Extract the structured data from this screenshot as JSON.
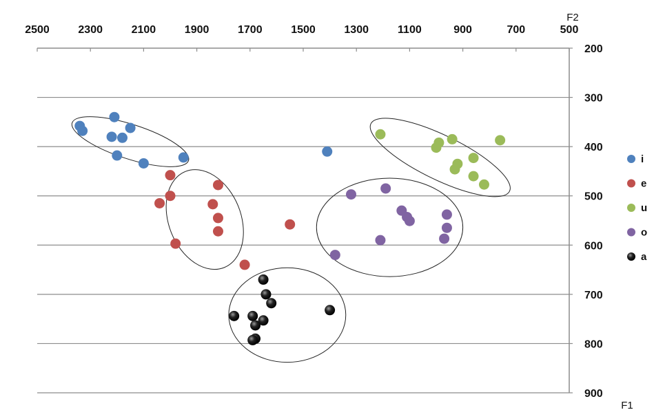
{
  "chart_data": {
    "type": "scatter",
    "x_axis": {
      "label": "F2",
      "min": 500,
      "max": 2500,
      "reversed": true,
      "position": "top",
      "ticks": [
        2500,
        2300,
        2100,
        1900,
        1700,
        1500,
        1300,
        1100,
        900,
        700,
        500
      ]
    },
    "y_axis": {
      "label": "F1",
      "min": 200,
      "max": 900,
      "reversed": true,
      "position": "right",
      "ticks": [
        200,
        300,
        400,
        500,
        600,
        700,
        800,
        900
      ]
    },
    "grid": {
      "horizontal": true,
      "vertical": false
    },
    "legend_position": "right",
    "series": [
      {
        "name": "i",
        "color": "#4f81bd",
        "points": [
          [
            2210,
            340
          ],
          [
            2340,
            358
          ],
          [
            2330,
            368
          ],
          [
            2150,
            362
          ],
          [
            2220,
            380
          ],
          [
            2180,
            382
          ],
          [
            2200,
            418
          ],
          [
            2100,
            434
          ],
          [
            1950,
            422
          ],
          [
            1410,
            410
          ]
        ]
      },
      {
        "name": "e",
        "color": "#c0504d",
        "points": [
          [
            2000,
            458
          ],
          [
            2040,
            515
          ],
          [
            2000,
            500
          ],
          [
            1820,
            478
          ],
          [
            1840,
            517
          ],
          [
            1820,
            545
          ],
          [
            1820,
            572
          ],
          [
            1980,
            597
          ],
          [
            1550,
            558
          ],
          [
            1720,
            640
          ]
        ]
      },
      {
        "name": "u",
        "color": "#9bbb59",
        "points": [
          [
            1210,
            375
          ],
          [
            990,
            392
          ],
          [
            940,
            385
          ],
          [
            1000,
            402
          ],
          [
            760,
            387
          ],
          [
            860,
            423
          ],
          [
            920,
            435
          ],
          [
            930,
            446
          ],
          [
            860,
            460
          ],
          [
            820,
            477
          ]
        ]
      },
      {
        "name": "o",
        "color": "#8064a2",
        "points": [
          [
            1190,
            485
          ],
          [
            1320,
            497
          ],
          [
            1130,
            530
          ],
          [
            1110,
            543
          ],
          [
            1100,
            551
          ],
          [
            960,
            538
          ],
          [
            960,
            565
          ],
          [
            970,
            587
          ],
          [
            1210,
            590
          ],
          [
            1380,
            620
          ]
        ]
      },
      {
        "name": "a",
        "color": "#111111",
        "points": [
          [
            1650,
            670
          ],
          [
            1640,
            700
          ],
          [
            1620,
            718
          ],
          [
            1400,
            732
          ],
          [
            1760,
            744
          ],
          [
            1690,
            744
          ],
          [
            1650,
            753
          ],
          [
            1680,
            763
          ],
          [
            1680,
            790
          ],
          [
            1690,
            793
          ]
        ]
      }
    ],
    "ellipses": [
      {
        "series": "i",
        "cx": 2150,
        "cy": 390,
        "rx": 230,
        "ry": 35,
        "angle": 18
      },
      {
        "series": "e",
        "cx": 1870,
        "cy": 548,
        "rx": 195,
        "ry": 73,
        "angle": 68
      },
      {
        "series": "u",
        "cx": 985,
        "cy": 422,
        "rx": 290,
        "ry": 45,
        "angle": 26
      },
      {
        "series": "o",
        "cx": 1175,
        "cy": 564,
        "rx": 275,
        "ry": 100,
        "angle": 0
      },
      {
        "series": "a",
        "cx": 1560,
        "cy": 742,
        "rx": 220,
        "ry": 96,
        "angle": 0
      }
    ]
  }
}
